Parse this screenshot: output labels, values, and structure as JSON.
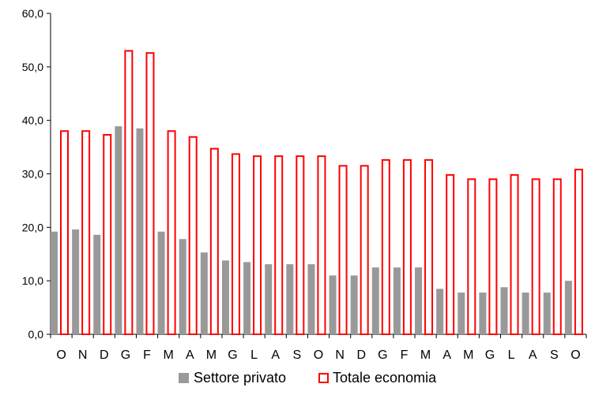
{
  "chart_data": {
    "type": "bar",
    "categories": [
      "O",
      "N",
      "D",
      "G",
      "F",
      "M",
      "A",
      "M",
      "G",
      "L",
      "A",
      "S",
      "O",
      "N",
      "D",
      "G",
      "F",
      "M",
      "A",
      "M",
      "G",
      "L",
      "A",
      "S",
      "O"
    ],
    "series": [
      {
        "name": "Settore privato",
        "color": "#999999",
        "style": "filled",
        "values": [
          19.2,
          19.6,
          18.6,
          38.9,
          38.5,
          19.2,
          17.8,
          15.3,
          13.8,
          13.5,
          13.1,
          13.1,
          13.1,
          11.0,
          11.0,
          12.5,
          12.5,
          12.5,
          8.5,
          7.8,
          7.8,
          8.8,
          7.8,
          7.8,
          10.0
        ]
      },
      {
        "name": "Totale economia",
        "color": "#ff0000",
        "style": "outline",
        "values": [
          38.0,
          38.0,
          37.3,
          53.0,
          52.6,
          38.0,
          36.9,
          34.7,
          33.7,
          33.3,
          33.3,
          33.3,
          33.3,
          31.5,
          31.5,
          32.6,
          32.6,
          32.6,
          29.8,
          29.0,
          29.0,
          29.8,
          29.0,
          29.0,
          30.8
        ]
      }
    ],
    "ylim": [
      0,
      60
    ],
    "yticks": [
      "0,0",
      "10,0",
      "20,0",
      "30,0",
      "40,0",
      "50,0",
      "60,0"
    ],
    "ytick_values": [
      0,
      10,
      20,
      30,
      40,
      50,
      60
    ],
    "grid": false,
    "legend": {
      "position": "bottom",
      "entries": [
        "Settore privato",
        "Totale economia"
      ]
    }
  }
}
